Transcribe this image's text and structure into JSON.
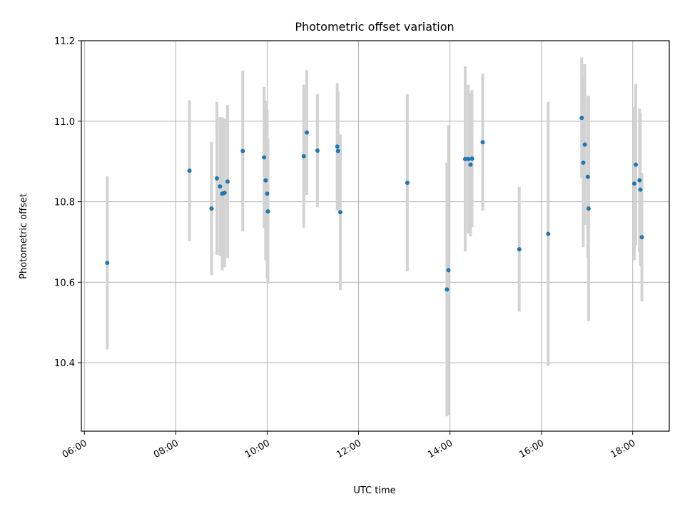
{
  "chart_data": {
    "type": "scatter",
    "title": "Photometric offset variation",
    "xlabel": "UTC time",
    "ylabel": "Photometric offset",
    "xlim": [
      "05:56",
      "18:48"
    ],
    "ylim": [
      10.23,
      11.2
    ],
    "x_ticks": [
      "06:00",
      "08:00",
      "10:00",
      "12:00",
      "14:00",
      "16:00",
      "18:00"
    ],
    "y_ticks": [
      "10.4",
      "10.6",
      "10.8",
      "11.0",
      "11.2"
    ],
    "grid": true,
    "marker_color": "#1f77b4",
    "errorbar_color": "#d3d3d3",
    "points": [
      {
        "x": "06:30",
        "y": 10.648,
        "err": 0.215
      },
      {
        "x": "08:18",
        "y": 10.877,
        "err": 0.175
      },
      {
        "x": "08:47",
        "y": 10.783,
        "err": 0.166
      },
      {
        "x": "08:54",
        "y": 10.858,
        "err": 0.19
      },
      {
        "x": "08:58",
        "y": 10.838,
        "err": 0.172
      },
      {
        "x": "09:01",
        "y": 10.82,
        "err": 0.19
      },
      {
        "x": "09:04",
        "y": 10.822,
        "err": 0.185
      },
      {
        "x": "09:08",
        "y": 10.85,
        "err": 0.19
      },
      {
        "x": "09:28",
        "y": 10.926,
        "err": 0.2
      },
      {
        "x": "09:56",
        "y": 10.91,
        "err": 0.175
      },
      {
        "x": "09:58",
        "y": 10.853,
        "err": 0.198
      },
      {
        "x": "10:00",
        "y": 10.82,
        "err": 0.21
      },
      {
        "x": "10:01",
        "y": 10.776,
        "err": 0.18
      },
      {
        "x": "10:48",
        "y": 10.913,
        "err": 0.178
      },
      {
        "x": "10:52",
        "y": 10.972,
        "err": 0.155
      },
      {
        "x": "11:06",
        "y": 10.927,
        "err": 0.14
      },
      {
        "x": "11:32",
        "y": 10.937,
        "err": 0.158
      },
      {
        "x": "11:33",
        "y": 10.926,
        "err": 0.148
      },
      {
        "x": "11:36",
        "y": 10.774,
        "err": 0.193
      },
      {
        "x": "13:04",
        "y": 10.847,
        "err": 0.22
      },
      {
        "x": "13:56",
        "y": 10.582,
        "err": 0.315
      },
      {
        "x": "13:58",
        "y": 10.63,
        "err": 0.36
      },
      {
        "x": "14:20",
        "y": 10.906,
        "err": 0.23
      },
      {
        "x": "14:24",
        "y": 10.906,
        "err": 0.185
      },
      {
        "x": "14:27",
        "y": 10.892,
        "err": 0.178
      },
      {
        "x": "14:29",
        "y": 10.907,
        "err": 0.17
      },
      {
        "x": "14:43",
        "y": 10.948,
        "err": 0.17
      },
      {
        "x": "15:31",
        "y": 10.682,
        "err": 0.155
      },
      {
        "x": "16:09",
        "y": 10.72,
        "err": 0.328
      },
      {
        "x": "16:53",
        "y": 11.008,
        "err": 0.15
      },
      {
        "x": "16:55",
        "y": 10.897,
        "err": 0.21
      },
      {
        "x": "16:57",
        "y": 10.942,
        "err": 0.2
      },
      {
        "x": "17:01",
        "y": 10.862,
        "err": 0.2
      },
      {
        "x": "17:02",
        "y": 10.783,
        "err": 0.28
      },
      {
        "x": "18:02",
        "y": 10.845,
        "err": 0.19
      },
      {
        "x": "18:04",
        "y": 10.892,
        "err": 0.2
      },
      {
        "x": "18:09",
        "y": 10.853,
        "err": 0.178
      },
      {
        "x": "18:10",
        "y": 10.83,
        "err": 0.19
      },
      {
        "x": "18:12",
        "y": 10.712,
        "err": 0.16
      }
    ]
  }
}
